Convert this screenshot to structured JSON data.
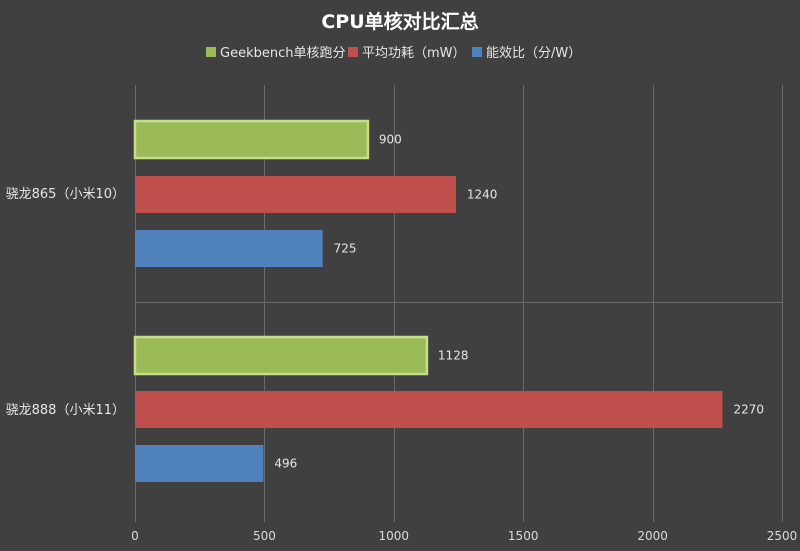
{
  "chart_data": {
    "type": "bar",
    "orientation": "horizontal",
    "title": "CPU单核对比汇总",
    "categories": [
      "骁龙865（小米10）",
      "骁龙888（小米11）"
    ],
    "series": [
      {
        "name": "Geekbench单核跑分",
        "color": "#9bbb59",
        "values": [
          900,
          1128
        ]
      },
      {
        "name": "平均功耗（mW）",
        "color": "#c0504d",
        "values": [
          1240,
          2270
        ]
      },
      {
        "name": "能效比（分/W）",
        "color": "#4f81bd",
        "values": [
          725,
          496
        ]
      }
    ],
    "xlim": [
      0,
      2500
    ],
    "xticks": [
      0,
      500,
      1000,
      1500,
      2000,
      2500
    ],
    "grid": true,
    "legend_position": "top",
    "data_labels": true
  }
}
